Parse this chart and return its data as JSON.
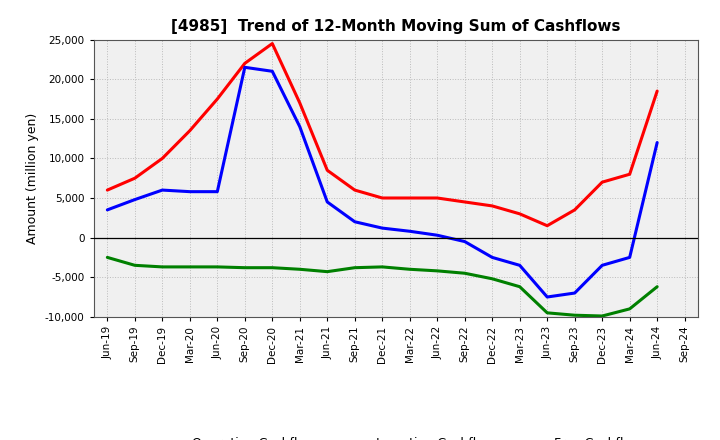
{
  "title": "[4985]  Trend of 12-Month Moving Sum of Cashflows",
  "ylabel": "Amount (million yen)",
  "plot_bg_color": "#f0f0f0",
  "fig_bg_color": "#ffffff",
  "grid_color": "#bbbbbb",
  "x_labels": [
    "Jun-19",
    "Sep-19",
    "Dec-19",
    "Mar-20",
    "Jun-20",
    "Sep-20",
    "Dec-20",
    "Mar-21",
    "Jun-21",
    "Sep-21",
    "Dec-21",
    "Mar-22",
    "Jun-22",
    "Sep-22",
    "Dec-22",
    "Mar-23",
    "Jun-23",
    "Sep-23",
    "Dec-23",
    "Mar-24",
    "Jun-24",
    "Sep-24"
  ],
  "operating_cashflow": [
    6000,
    7500,
    10000,
    13500,
    17500,
    22000,
    24500,
    17000,
    8500,
    6000,
    5000,
    5000,
    5000,
    4500,
    4000,
    3000,
    1500,
    3500,
    7000,
    8000,
    18500,
    null
  ],
  "investing_cashflow": [
    -2500,
    -3500,
    -3700,
    -3700,
    -3700,
    -3800,
    -3800,
    -4000,
    -4300,
    -3800,
    -3700,
    -4000,
    -4200,
    -4500,
    -5200,
    -6200,
    -9500,
    -9800,
    -9900,
    -9000,
    -6200,
    null
  ],
  "free_cashflow": [
    3500,
    4800,
    6000,
    5800,
    5800,
    21500,
    21000,
    14000,
    4500,
    2000,
    1200,
    800,
    300,
    -500,
    -2500,
    -3500,
    -7500,
    -7000,
    -3500,
    -2500,
    12000,
    null
  ],
  "operating_color": "#ff0000",
  "investing_color": "#008000",
  "free_color": "#0000ff",
  "ylim": [
    -10000,
    25000
  ],
  "yticks": [
    -10000,
    -5000,
    0,
    5000,
    10000,
    15000,
    20000,
    25000
  ],
  "line_width": 2.2
}
